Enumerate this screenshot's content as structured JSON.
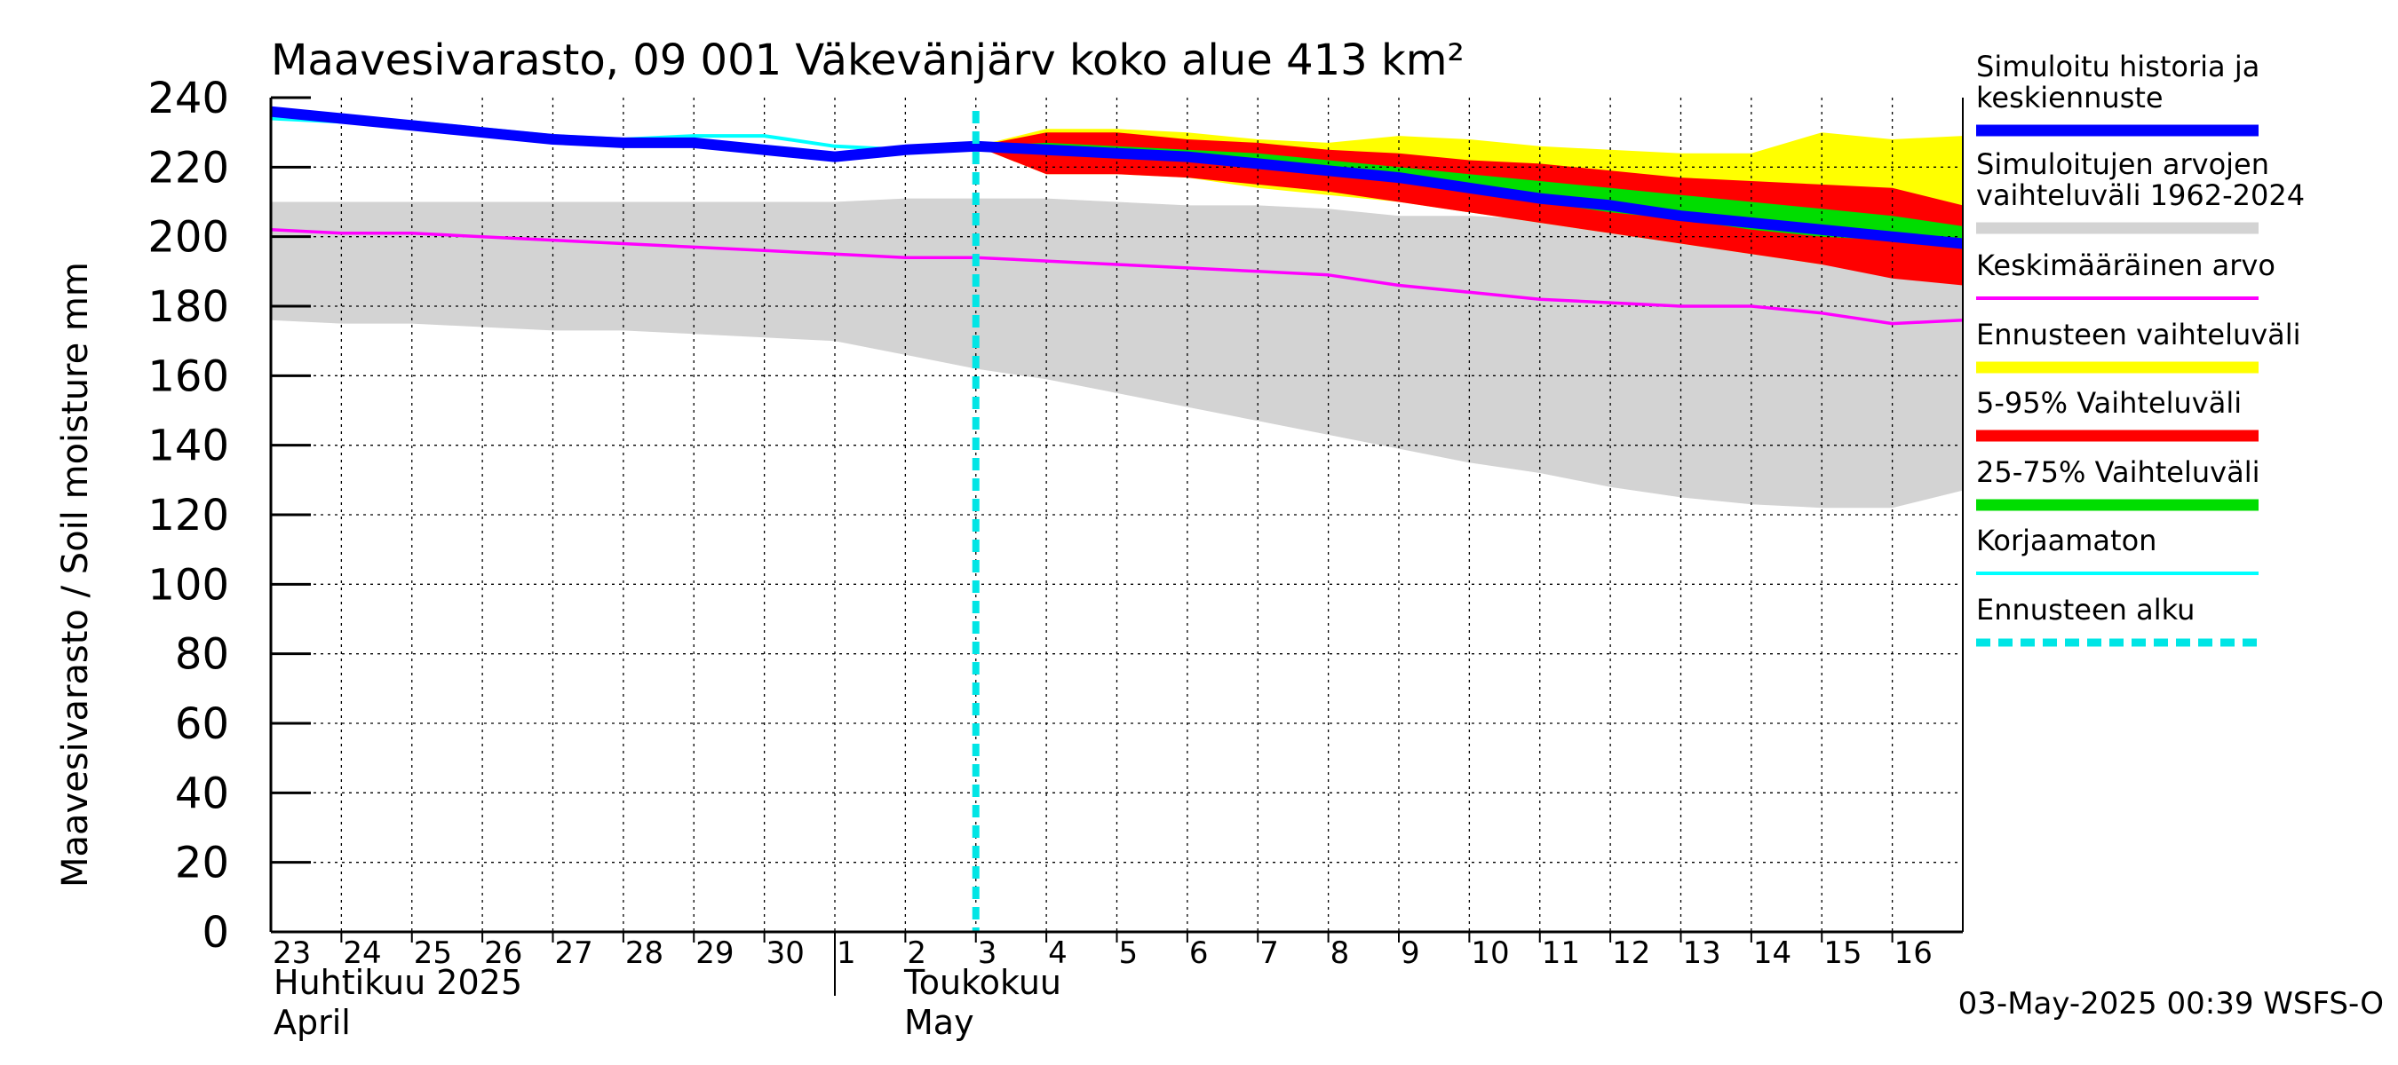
{
  "chart_data": {
    "type": "area",
    "title": "Maavesivarasto, 09 001 Väkevänjärv koko alue 413 km²",
    "ylabel": "Maavesivarasto / Soil moisture   mm",
    "ylim": [
      0,
      240
    ],
    "yticks": [
      0,
      20,
      40,
      60,
      80,
      100,
      120,
      140,
      160,
      180,
      200,
      220,
      240
    ],
    "xlim": [
      0,
      24
    ],
    "day_labels": [
      "23",
      "24",
      "25",
      "26",
      "27",
      "28",
      "29",
      "30",
      "1",
      "2",
      "3",
      "4",
      "5",
      "6",
      "7",
      "8",
      "9",
      "10",
      "11",
      "12",
      "13",
      "14",
      "15",
      "16"
    ],
    "month_labels": {
      "april_fi": "Huhtikuu  2025",
      "april_en": "April",
      "may_fi": "Toukokuu",
      "may_en": "May"
    },
    "month_boundary_x": 8,
    "forecast_start_x": 10.0,
    "footer": "03-May-2025 00:39 WSFS-O",
    "colors": {
      "history_range": "#d3d3d3",
      "forecast_range": "#ffff00",
      "p5_95": "#ff0000",
      "p25_75": "#00dd00",
      "simulated": "#0000ff",
      "mean": "#ff00ff",
      "uncorrected": "#00ffff",
      "forecast_start": "#00e5e5"
    },
    "series": {
      "history_range": {
        "x": [
          0,
          1,
          2,
          3,
          4,
          5,
          6,
          7,
          8,
          9,
          10,
          11,
          12,
          13,
          14,
          15,
          16,
          17,
          18,
          19,
          20,
          21,
          22,
          23,
          24
        ],
        "upper": [
          210,
          210,
          210,
          210,
          210,
          210,
          210,
          210,
          210,
          211,
          211,
          211,
          210,
          209,
          209,
          208,
          206,
          206,
          205,
          204,
          203,
          201,
          201,
          199,
          196
        ],
        "lower": [
          176,
          175,
          175,
          174,
          173,
          173,
          172,
          171,
          170,
          166,
          162,
          159,
          155,
          151,
          147,
          143,
          139,
          135,
          132,
          128,
          125,
          123,
          122,
          122,
          127
        ]
      },
      "forecast_range": {
        "x": [
          10,
          11,
          12,
          13,
          14,
          15,
          16,
          17,
          18,
          19,
          20,
          21,
          22,
          23,
          24
        ],
        "upper": [
          226,
          231,
          231,
          230,
          228,
          227,
          229,
          228,
          226,
          225,
          224,
          224,
          230,
          228,
          229
        ],
        "lower": [
          226,
          218,
          218,
          217,
          214,
          212,
          210,
          207,
          204,
          201,
          198,
          195,
          192,
          189,
          186
        ]
      },
      "p5_95": {
        "x": [
          10,
          11,
          12,
          13,
          14,
          15,
          16,
          17,
          18,
          19,
          20,
          21,
          22,
          23,
          24
        ],
        "upper": [
          226,
          230,
          230,
          228,
          227,
          225,
          224,
          222,
          221,
          219,
          217,
          216,
          215,
          214,
          209
        ],
        "lower": [
          226,
          218,
          218,
          217,
          215,
          213,
          210,
          207,
          204,
          201,
          198,
          195,
          192,
          188,
          186
        ]
      },
      "p25_75": {
        "x": [
          10,
          11,
          12,
          13,
          14,
          15,
          16,
          17,
          18,
          19,
          20,
          21,
          22,
          23,
          24
        ],
        "upper": [
          226,
          227,
          226,
          225,
          224,
          222,
          220,
          218,
          216,
          214,
          212,
          210,
          208,
          206,
          203
        ],
        "lower": [
          226,
          224,
          223,
          222,
          220,
          218,
          216,
          213,
          210,
          207,
          205,
          202,
          200,
          199,
          197
        ]
      },
      "simulated": {
        "name": "Simuloitu historia ja keskiennuste",
        "x": [
          0,
          1,
          2,
          3,
          4,
          5,
          6,
          7,
          8,
          9,
          10,
          11,
          12,
          13,
          14,
          15,
          16,
          17,
          18,
          19,
          20,
          21,
          22,
          23,
          24
        ],
        "y": [
          236,
          234,
          232,
          230,
          228,
          227,
          227,
          225,
          223,
          225,
          226,
          225,
          224,
          223,
          221,
          219,
          217,
          214,
          211,
          209,
          206,
          204,
          202,
          200,
          198
        ]
      },
      "uncorrected": {
        "name": "Korjaamaton",
        "x": [
          0,
          1,
          2,
          3,
          4,
          5,
          6,
          7,
          8,
          9,
          10
        ],
        "y": [
          234,
          233,
          233,
          231,
          229,
          228,
          229,
          229,
          226,
          225,
          226
        ]
      },
      "mean": {
        "name": "Keskimääräinen arvo",
        "x": [
          0,
          1,
          2,
          3,
          4,
          5,
          6,
          7,
          8,
          9,
          10,
          11,
          12,
          13,
          14,
          15,
          16,
          17,
          18,
          19,
          20,
          21,
          22,
          23,
          24
        ],
        "y": [
          202,
          201,
          201,
          200,
          199,
          198,
          197,
          196,
          195,
          194,
          194,
          193,
          192,
          191,
          190,
          189,
          186,
          184,
          182,
          181,
          180,
          180,
          178,
          175,
          176
        ]
      }
    },
    "legend": [
      {
        "label": "Simuloitu historia ja keskiennuste",
        "color": "#0000ff",
        "style": "thick"
      },
      {
        "label": "Simuloitujen arvojen vaihteluväli 1962-2024",
        "color": "#d3d3d3",
        "style": "thick"
      },
      {
        "label": "Keskimääräinen arvo",
        "color": "#ff00ff",
        "style": "thin"
      },
      {
        "label": "Ennusteen vaihteluväli",
        "color": "#ffff00",
        "style": "thick"
      },
      {
        "label": "5-95% Vaihteluväli",
        "color": "#ff0000",
        "style": "thick"
      },
      {
        "label": "25-75% Vaihteluväli",
        "color": "#00dd00",
        "style": "thick"
      },
      {
        "label": "Korjaamaton",
        "color": "#00ffff",
        "style": "thin"
      },
      {
        "label": "Ennusteen alku",
        "color": "#00e5e5",
        "style": "dashed"
      }
    ]
  }
}
